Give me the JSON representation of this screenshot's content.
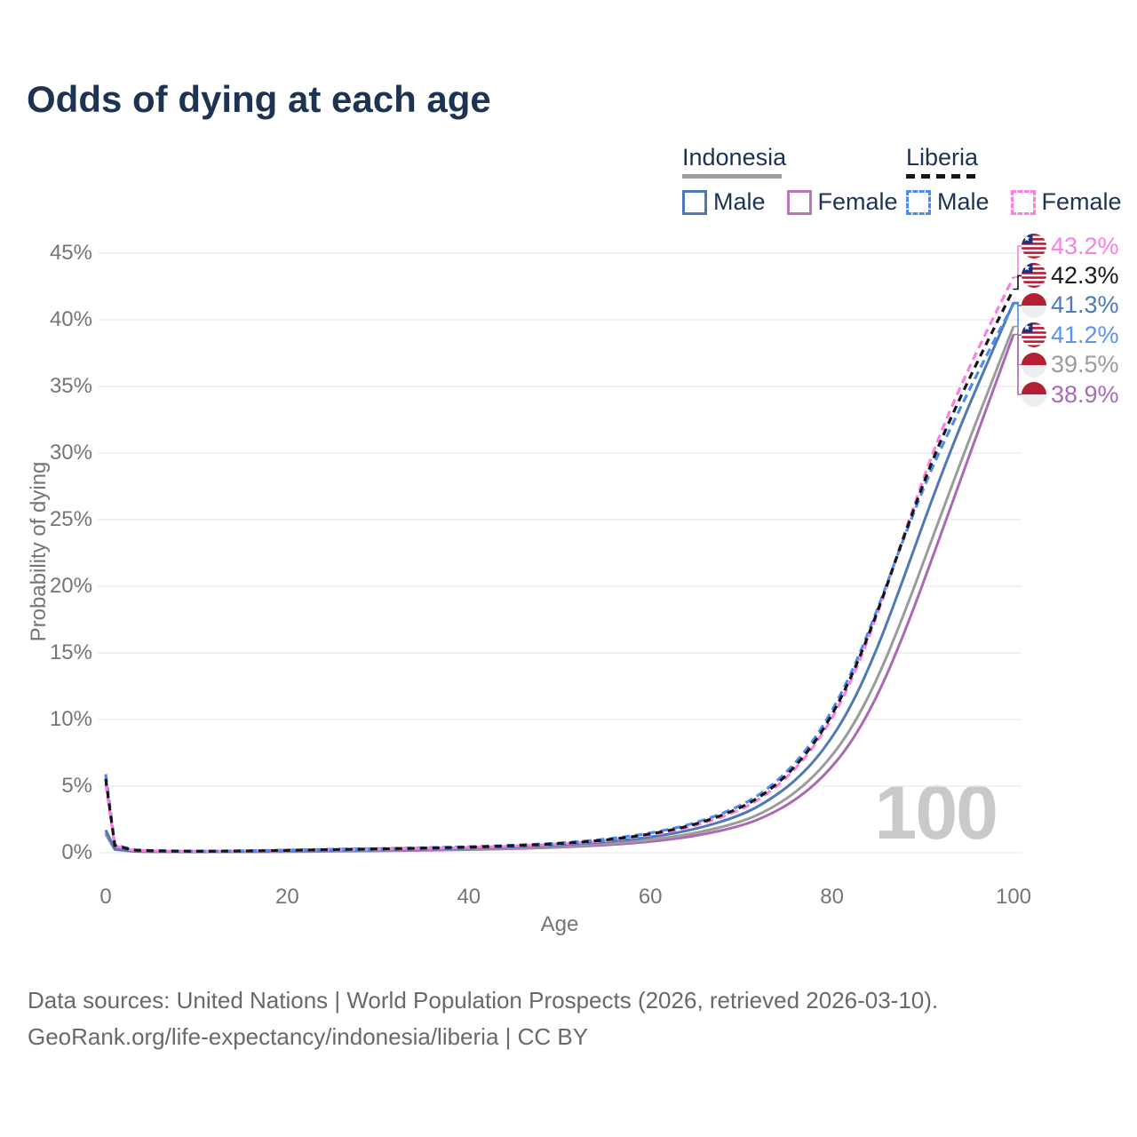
{
  "title": "Odds of dying at each age",
  "legend": {
    "groups": [
      {
        "label": "Indonesia",
        "line_style": "solid",
        "underline_color": "#9e9e9e",
        "items": [
          {
            "label": "Male",
            "color": "#4e79b4",
            "dashed": false
          },
          {
            "label": "Female",
            "color": "#b878b8",
            "dashed": false
          }
        ]
      },
      {
        "label": "Liberia",
        "line_style": "dashed",
        "underline_color": "#161616",
        "items": [
          {
            "label": "Male",
            "color": "#4b8cf2",
            "dashed": true
          },
          {
            "label": "Female",
            "color": "#fc7ee2",
            "dashed": true
          }
        ]
      }
    ]
  },
  "watermark": "100",
  "footer": {
    "line1": "Data sources: United Nations | World Population Prospects (2026, retrieved 2026-03-10).",
    "line2": "GeoRank.org/life-expectancy/indonesia/liberia | CC BY"
  },
  "chart_data": {
    "type": "line",
    "title": "Odds of dying at each age",
    "xlabel": "Age",
    "ylabel": "Probability of dying",
    "xlim": [
      0,
      100
    ],
    "ylim": [
      0,
      45
    ],
    "grid": "horizontal",
    "x_ticks": [
      0,
      20,
      40,
      60,
      80,
      100
    ],
    "y_ticks": [
      "0%",
      "5%",
      "10%",
      "15%",
      "20%",
      "25%",
      "30%",
      "35%",
      "40%",
      "45%"
    ],
    "x": [
      0,
      1,
      3,
      5,
      10,
      15,
      20,
      25,
      30,
      35,
      40,
      45,
      50,
      55,
      60,
      65,
      70,
      73,
      76,
      79,
      82,
      85,
      88,
      91,
      94,
      97,
      100
    ],
    "series": [
      {
        "name": "Liberia Female",
        "color": "#fc7ee2",
        "dash": "9 5.5",
        "flag": "liberia",
        "end_label": "43.2%",
        "label_color": "#fb7ee0",
        "values": [
          5.2,
          0.5,
          0.18,
          0.13,
          0.1,
          0.12,
          0.16,
          0.21,
          0.26,
          0.32,
          0.39,
          0.5,
          0.64,
          0.88,
          1.3,
          2.0,
          3.2,
          4.45,
          6.25,
          8.85,
          12.6,
          17.8,
          24.0,
          29.9,
          34.8,
          39.1,
          43.2
        ]
      },
      {
        "name": "Liberia Both sexes",
        "color": "#161616",
        "dash": "8 6",
        "flag": "liberia",
        "end_label": "42.3%",
        "label_color": "#1a1a1a",
        "values": [
          5.55,
          0.55,
          0.2,
          0.14,
          0.11,
          0.13,
          0.18,
          0.24,
          0.29,
          0.35,
          0.42,
          0.53,
          0.68,
          0.94,
          1.38,
          2.1,
          3.35,
          4.6,
          6.45,
          9.1,
          12.9,
          18.0,
          23.9,
          29.4,
          34.0,
          38.2,
          42.3
        ]
      },
      {
        "name": "Indonesia Male",
        "color": "#4e79b4",
        "dash": null,
        "flag": "indonesia",
        "end_label": "41.3%",
        "label_color": "#4e79b4",
        "values": [
          1.7,
          0.3,
          0.12,
          0.09,
          0.08,
          0.1,
          0.13,
          0.17,
          0.21,
          0.26,
          0.33,
          0.43,
          0.58,
          0.8,
          1.15,
          1.75,
          2.8,
          3.9,
          5.4,
          7.6,
          10.8,
          15.3,
          20.8,
          26.5,
          31.8,
          36.6,
          41.3
        ]
      },
      {
        "name": "Liberia Male",
        "color": "#4b8cf2",
        "dash": "9 5.5",
        "flag": "liberia",
        "end_label": "41.2%",
        "label_color": "#5b93ee",
        "values": [
          5.9,
          0.6,
          0.22,
          0.15,
          0.12,
          0.14,
          0.2,
          0.26,
          0.31,
          0.37,
          0.45,
          0.56,
          0.72,
          1.0,
          1.45,
          2.2,
          3.5,
          4.8,
          6.7,
          9.4,
          13.2,
          18.2,
          23.8,
          28.9,
          33.2,
          37.3,
          41.2
        ]
      },
      {
        "name": "Indonesia Both sexes",
        "color": "#9b9b9b",
        "dash": null,
        "flag": "indonesia",
        "end_label": "39.5%",
        "label_color": "#9b9b9b",
        "values": [
          1.55,
          0.27,
          0.11,
          0.08,
          0.07,
          0.08,
          0.1,
          0.13,
          0.17,
          0.21,
          0.27,
          0.35,
          0.47,
          0.66,
          0.95,
          1.45,
          2.3,
          3.2,
          4.5,
          6.4,
          9.1,
          13.0,
          18.0,
          23.5,
          29.0,
          34.3,
          39.5
        ]
      },
      {
        "name": "Indonesia Female",
        "color": "#ab68b5",
        "dash": null,
        "flag": "indonesia",
        "end_label": "38.9%",
        "label_color": "#a76ab8",
        "values": [
          1.4,
          0.24,
          0.1,
          0.07,
          0.06,
          0.07,
          0.08,
          0.11,
          0.14,
          0.18,
          0.23,
          0.3,
          0.41,
          0.57,
          0.82,
          1.25,
          2.0,
          2.8,
          3.95,
          5.65,
          8.1,
          11.7,
          16.5,
          22.0,
          27.7,
          33.3,
          38.9
        ]
      }
    ]
  }
}
